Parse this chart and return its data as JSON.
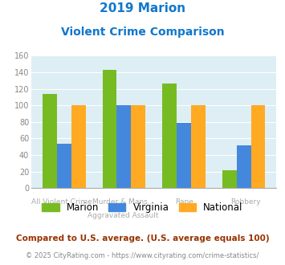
{
  "title_line1": "2019 Marion",
  "title_line2": "Violent Crime Comparison",
  "cat_labels_top": [
    "",
    "Murder & Mans...",
    "",
    ""
  ],
  "cat_labels_bottom": [
    "All Violent Crime",
    "Aggravated Assault",
    "Rape",
    "Robbery"
  ],
  "marion": [
    114,
    143,
    126,
    22
  ],
  "virginia": [
    54,
    100,
    79,
    52
  ],
  "national": [
    100,
    100,
    100,
    100
  ],
  "marion_color": "#77bb22",
  "virginia_color": "#4488dd",
  "national_color": "#ffaa22",
  "ylim": [
    0,
    160
  ],
  "yticks": [
    0,
    20,
    40,
    60,
    80,
    100,
    120,
    140,
    160
  ],
  "bg_color": "#ddeef5",
  "legend_labels": [
    "Marion",
    "Virginia",
    "National"
  ],
  "footnote1": "Compared to U.S. average. (U.S. average equals 100)",
  "footnote2": "© 2025 CityRating.com - https://www.cityrating.com/crime-statistics/",
  "title_color": "#1177cc",
  "footnote1_color": "#993300",
  "footnote2_color": "#888888",
  "url_color": "#4488cc"
}
